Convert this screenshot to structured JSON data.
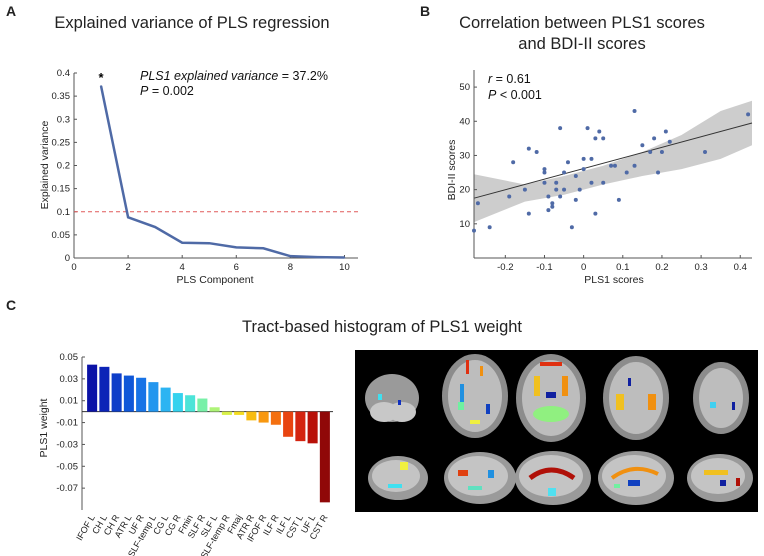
{
  "chart_data": [
    {
      "panel": "A",
      "type": "line",
      "title": "Explained variance of PLS regression",
      "xlabel": "PLS Component",
      "ylabel": "Explained variance",
      "x": [
        1,
        2,
        3,
        4,
        5,
        6,
        7,
        8,
        9,
        10
      ],
      "values": [
        0.372,
        0.088,
        0.067,
        0.033,
        0.032,
        0.023,
        0.021,
        0.004,
        0.002,
        0.001
      ],
      "xlim": [
        0,
        10.5
      ],
      "ylim": [
        0,
        0.4
      ],
      "xticks": [
        "0",
        "2",
        "4",
        "6",
        "8",
        "10"
      ],
      "yticks": [
        "0",
        "0.05",
        "0.1",
        "0.15",
        "0.2",
        "0.25",
        "0.3",
        "0.35",
        "0.4"
      ],
      "threshold": 0.1,
      "marker_label": "*",
      "annotation_line1_italic": "PLS1 explained variance",
      "annotation_line1_rest": " = 37.2%",
      "annotation_line2_italic": "P",
      "annotation_line2_rest": " = 0.002",
      "line_color": "#4f6aa6",
      "threshold_color": "#e05a5a"
    },
    {
      "panel": "B",
      "type": "scatter",
      "title_line1": "Correlation between PLS1 scores",
      "title_line2": "and BDI-II scores",
      "xlabel": "PLS1 scores",
      "ylabel": "BDI-II scores",
      "xlim": [
        -0.28,
        0.43
      ],
      "ylim": [
        0,
        55
      ],
      "xticks": [
        "-0.2",
        "-0.1",
        "0",
        "0.1",
        "0.2",
        "0.3",
        "0.4"
      ],
      "yticks": [
        "10",
        "20",
        "30",
        "40",
        "50"
      ],
      "points": [
        [
          -0.28,
          8
        ],
        [
          -0.27,
          16
        ],
        [
          -0.24,
          9
        ],
        [
          -0.19,
          18
        ],
        [
          -0.18,
          28
        ],
        [
          -0.15,
          20
        ],
        [
          -0.14,
          13
        ],
        [
          -0.14,
          32
        ],
        [
          -0.12,
          31
        ],
        [
          -0.1,
          26
        ],
        [
          -0.1,
          25
        ],
        [
          -0.1,
          22
        ],
        [
          -0.09,
          14
        ],
        [
          -0.09,
          18
        ],
        [
          -0.08,
          15
        ],
        [
          -0.08,
          16
        ],
        [
          -0.07,
          22
        ],
        [
          -0.07,
          20
        ],
        [
          -0.06,
          38
        ],
        [
          -0.06,
          18
        ],
        [
          -0.05,
          20
        ],
        [
          -0.05,
          25
        ],
        [
          -0.04,
          28
        ],
        [
          -0.03,
          9
        ],
        [
          -0.02,
          24
        ],
        [
          -0.02,
          17
        ],
        [
          -0.01,
          20
        ],
        [
          0.0,
          26
        ],
        [
          0.0,
          29
        ],
        [
          0.01,
          38
        ],
        [
          0.02,
          22
        ],
        [
          0.02,
          29
        ],
        [
          0.03,
          35
        ],
        [
          0.03,
          13
        ],
        [
          0.04,
          37
        ],
        [
          0.05,
          35
        ],
        [
          0.05,
          22
        ],
        [
          0.07,
          27
        ],
        [
          0.08,
          27
        ],
        [
          0.09,
          17
        ],
        [
          0.11,
          25
        ],
        [
          0.13,
          43
        ],
        [
          0.13,
          27
        ],
        [
          0.15,
          33
        ],
        [
          0.17,
          31
        ],
        [
          0.18,
          35
        ],
        [
          0.19,
          25
        ],
        [
          0.2,
          31
        ],
        [
          0.21,
          37
        ],
        [
          0.22,
          34
        ],
        [
          0.31,
          31
        ],
        [
          0.42,
          42
        ]
      ],
      "fit": {
        "x": [
          -0.28,
          0.43
        ],
        "y": [
          17.5,
          39.5
        ]
      },
      "ci_upper": [
        24.5,
        21.5,
        24,
        27,
        31,
        36,
        43,
        46
      ],
      "ci_lower": [
        10.5,
        16.5,
        18.5,
        21.5,
        24,
        26,
        29,
        33
      ],
      "ci_x": [
        -0.28,
        -0.15,
        -0.05,
        0.05,
        0.15,
        0.25,
        0.35,
        0.43
      ],
      "annotation_line1_italic": "r",
      "annotation_line1_rest": " = 0.61",
      "annotation_line2_italic": "P",
      "annotation_line2_rest": " < 0.001",
      "point_color": "#4f6aa6",
      "band_color": "#c8c8c8"
    },
    {
      "panel": "C",
      "type": "bar",
      "title": "Tract-based histogram of PLS1 weight",
      "ylabel": "PLS1 weight",
      "categories": [
        "IFOF L",
        "CH L",
        "CH R",
        "ATR L",
        "UF R",
        "SLF-temp L",
        "CG L",
        "CG R",
        "Fmin",
        "SLF R",
        "SLF L",
        "SLF-temp R",
        "Fmaj",
        "ATR R",
        "IFOF R",
        "ILF R",
        "ILF L",
        "CST L",
        "UF L",
        "CST R"
      ],
      "values": [
        0.043,
        0.041,
        0.035,
        0.033,
        0.031,
        0.027,
        0.022,
        0.017,
        0.015,
        0.012,
        0.004,
        -0.003,
        -0.003,
        -0.008,
        -0.01,
        -0.012,
        -0.023,
        -0.027,
        -0.029,
        -0.083
      ],
      "colors": [
        "#0b12a6",
        "#0c24b7",
        "#0e3ec8",
        "#1057d8",
        "#1873e6",
        "#2396ee",
        "#2cb4f2",
        "#35d2ee",
        "#4ce4d8",
        "#78f0a8",
        "#aef478",
        "#d8f048",
        "#f4dc20",
        "#f8bc10",
        "#f89810",
        "#f47010",
        "#e84410",
        "#d42410",
        "#b81008",
        "#900808"
      ],
      "ylim": [
        -0.09,
        0.05
      ],
      "yticks": [
        "0.05",
        "0.03",
        "0.01",
        "-0.01",
        "-0.03",
        "-0.05",
        "-0.07"
      ]
    }
  ],
  "panel_letters": {
    "a": "A",
    "b": "B",
    "c": "C"
  },
  "brain_image_alt": "brain tract slices"
}
